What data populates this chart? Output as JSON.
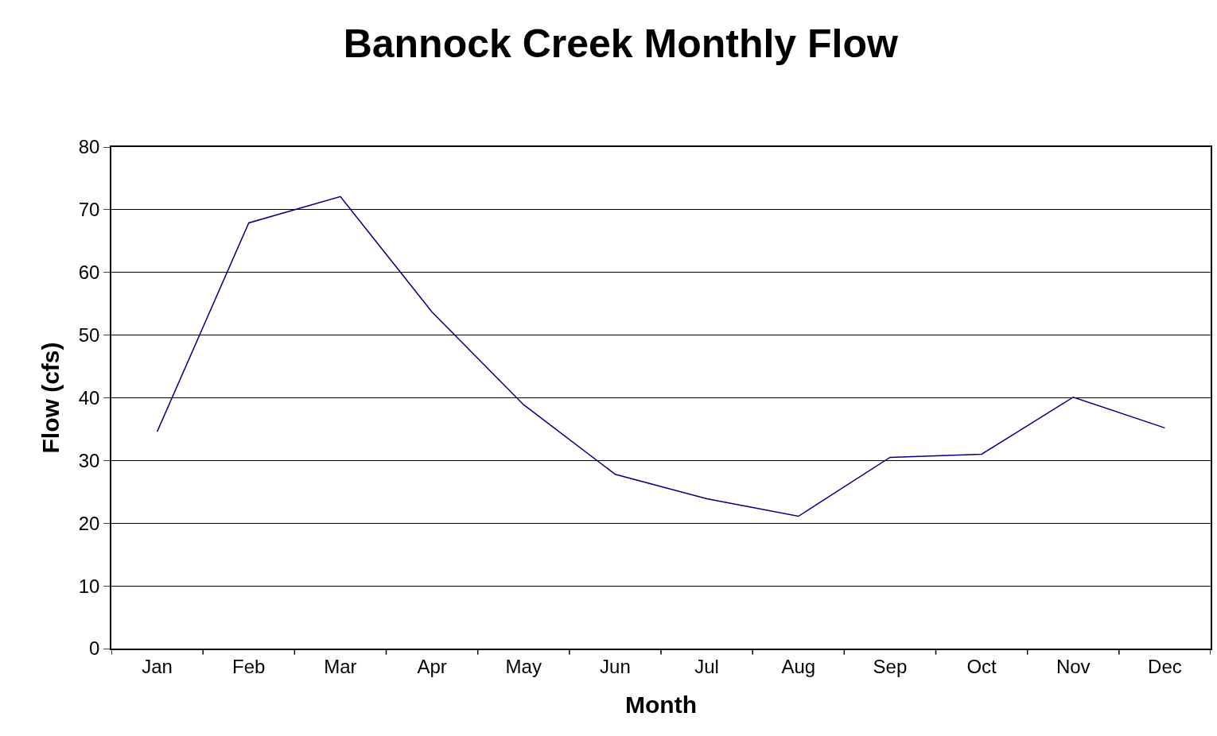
{
  "chart_data": {
    "type": "line",
    "title": "Bannock Creek Monthly Flow",
    "xlabel": "Month",
    "ylabel": "Flow (cfs)",
    "categories": [
      "Jan",
      "Feb",
      "Mar",
      "Apr",
      "May",
      "Jun",
      "Jul",
      "Aug",
      "Sep",
      "Oct",
      "Nov",
      "Dec"
    ],
    "series": [
      {
        "color": "#000080",
        "values": [
          34.6,
          67.9,
          72.1,
          53.7,
          38.9,
          27.8,
          23.9,
          21.1,
          30.5,
          31.0,
          40.1,
          35.2
        ]
      }
    ],
    "ylim": [
      0,
      80
    ],
    "yticks": [
      0,
      10,
      20,
      30,
      40,
      50,
      60,
      70,
      80
    ],
    "grid": "y",
    "marker": "none",
    "line_style": "solid"
  }
}
